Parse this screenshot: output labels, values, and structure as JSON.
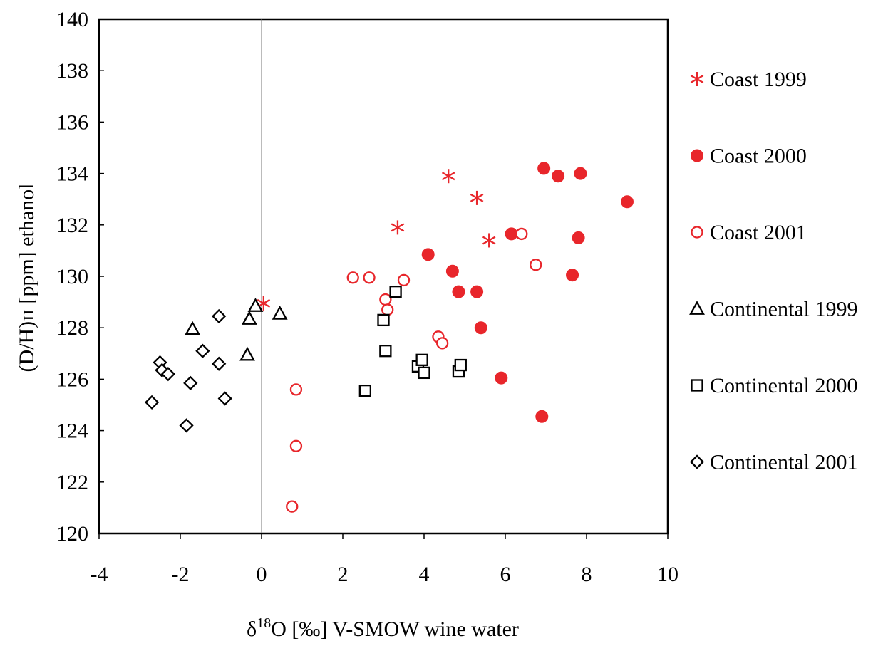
{
  "chart_data": {
    "type": "scatter",
    "xlabel": {
      "prefix": "δ",
      "superscript": "18",
      "rest": "O [‰] V-SMOW wine water"
    },
    "ylabel": "(D/H)ɪɪ [ppm] ethanol",
    "xlim": [
      -4,
      10
    ],
    "ylim": [
      120,
      140
    ],
    "xticks": [
      -4,
      -2,
      0,
      2,
      4,
      6,
      8,
      10
    ],
    "yticks": [
      120,
      122,
      124,
      126,
      128,
      130,
      132,
      134,
      136,
      138,
      140
    ],
    "vertical_reference_line_x": 0,
    "legend_position": "right",
    "series": [
      {
        "name": "Coast 1999",
        "marker": "asterisk",
        "color": "#e8262b",
        "points": [
          [
            0.05,
            128.95
          ],
          [
            3.35,
            131.9
          ],
          [
            4.6,
            133.9
          ],
          [
            5.3,
            133.05
          ],
          [
            5.6,
            131.4
          ]
        ]
      },
      {
        "name": "Coast 2000",
        "marker": "filled-circle",
        "color": "#e8262b",
        "points": [
          [
            4.1,
            130.85
          ],
          [
            4.7,
            130.2
          ],
          [
            4.85,
            129.4
          ],
          [
            5.3,
            129.4
          ],
          [
            5.4,
            128.0
          ],
          [
            5.9,
            126.05
          ],
          [
            6.15,
            131.65
          ],
          [
            6.9,
            124.55
          ],
          [
            6.95,
            134.2
          ],
          [
            7.3,
            133.9
          ],
          [
            7.65,
            130.05
          ],
          [
            7.8,
            131.5
          ],
          [
            7.85,
            134.0
          ],
          [
            9.0,
            132.9
          ]
        ]
      },
      {
        "name": "Coast 2001",
        "marker": "open-circle",
        "color": "#e8262b",
        "points": [
          [
            0.75,
            121.05
          ],
          [
            0.85,
            125.6
          ],
          [
            0.85,
            123.4
          ],
          [
            2.25,
            129.95
          ],
          [
            2.65,
            129.95
          ],
          [
            3.05,
            129.1
          ],
          [
            3.1,
            128.7
          ],
          [
            3.5,
            129.85
          ],
          [
            4.35,
            127.65
          ],
          [
            4.45,
            127.4
          ],
          [
            6.4,
            131.65
          ],
          [
            6.75,
            130.45
          ]
        ]
      },
      {
        "name": "Continental 1999",
        "marker": "open-triangle",
        "color": "#000000",
        "points": [
          [
            -1.7,
            127.95
          ],
          [
            -0.35,
            126.95
          ],
          [
            -0.3,
            128.35
          ],
          [
            -0.15,
            128.85
          ],
          [
            0.45,
            128.55
          ]
        ]
      },
      {
        "name": "Continental 2000",
        "marker": "open-square",
        "color": "#000000",
        "points": [
          [
            2.55,
            125.55
          ],
          [
            3.0,
            128.3
          ],
          [
            3.05,
            127.1
          ],
          [
            3.3,
            129.4
          ],
          [
            3.85,
            126.5
          ],
          [
            3.95,
            126.75
          ],
          [
            4.0,
            126.25
          ],
          [
            4.85,
            126.3
          ],
          [
            4.9,
            126.55
          ]
        ]
      },
      {
        "name": "Continental 2001",
        "marker": "open-diamond",
        "color": "#000000",
        "points": [
          [
            -2.7,
            125.1
          ],
          [
            -2.5,
            126.65
          ],
          [
            -2.45,
            126.35
          ],
          [
            -2.3,
            126.2
          ],
          [
            -1.85,
            124.2
          ],
          [
            -1.75,
            125.85
          ],
          [
            -1.45,
            127.1
          ],
          [
            -1.05,
            126.6
          ],
          [
            -1.05,
            128.45
          ],
          [
            -0.9,
            125.25
          ]
        ]
      }
    ]
  }
}
